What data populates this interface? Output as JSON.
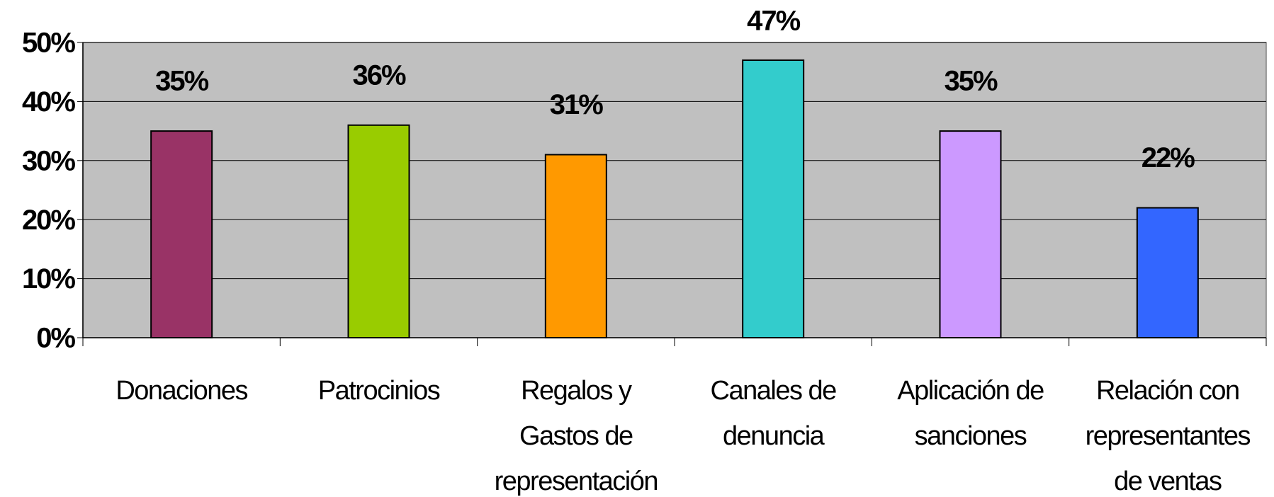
{
  "chart_data": {
    "type": "bar",
    "categories": [
      "Donaciones",
      "Patrocinios",
      "Regalos y Gastos de representación",
      "Canales de denuncia",
      "Aplicación de sanciones",
      "Relación con representantes de ventas"
    ],
    "values": [
      35,
      36,
      31,
      47,
      35,
      22
    ],
    "value_labels": [
      "35%",
      "36%",
      "31%",
      "47%",
      "35%",
      "22%"
    ],
    "colors": [
      "#993366",
      "#99cc00",
      "#ff9900",
      "#33cccc",
      "#cc99ff",
      "#3366ff"
    ],
    "ylim": [
      0,
      50
    ],
    "yticks": [
      {
        "value": 0,
        "label": "0%"
      },
      {
        "value": 10,
        "label": "10%"
      },
      {
        "value": 20,
        "label": "20%"
      },
      {
        "value": 30,
        "label": "30%"
      },
      {
        "value": 40,
        "label": "40%"
      },
      {
        "value": 50,
        "label": "50%"
      }
    ],
    "grid": true
  }
}
